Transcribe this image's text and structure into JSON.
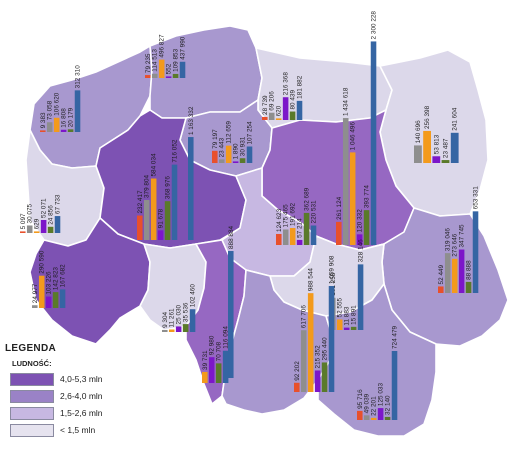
{
  "legend": {
    "title": "LEGENDA",
    "subtitle": "LUDNOŚĆ:",
    "items": [
      {
        "label": "4,0-5,3 mln",
        "color": "#7d52b3"
      },
      {
        "label": "2,6-4,0 mln",
        "color": "#9a82c6"
      },
      {
        "label": "1,5-2,6 mln",
        "color": "#c7b8e2"
      },
      {
        "label": "< 1,5 mln",
        "color": "#e6e3ef"
      }
    ]
  },
  "bar_colors": [
    "#e8502c",
    "#8e8e8e",
    "#f39a1c",
    "#7c16c9",
    "#5a7a2a",
    "#3565a3"
  ],
  "groups": [
    {
      "id": "zachodniopomorskie",
      "values": [
        79235,
        114513,
        496827,
        552,
        109853,
        437990
      ],
      "labels": [
        "79 235",
        "114 513",
        "496 827",
        "552",
        "109 853",
        "437 990"
      ]
    },
    {
      "id": "pomorskie-west",
      "values": [
        9383,
        73058,
        106620,
        16808,
        20179,
        312310
      ],
      "labels": [
        "9 383",
        "73 058",
        "106 620",
        "16 808",
        "20 179",
        "312 310"
      ]
    },
    {
      "id": "warminsko-mazurskie",
      "values": [
        28739,
        69206,
        620,
        216368,
        80439,
        181882
      ],
      "labels": [
        "28 739",
        "69 206",
        "620",
        "216 368",
        "80 439",
        "181 882"
      ]
    },
    {
      "id": "kujawsko-pomorskie",
      "values": [
        79197,
        23443,
        112659,
        1890,
        30931,
        107254
      ],
      "labels": [
        "79 197",
        "23 443",
        "112 659",
        "1 890",
        "30 931",
        "107 254"
      ]
    },
    {
      "id": "wielkopolskie",
      "values": [
        232417,
        379804,
        584034,
        91678,
        368976,
        716052
      ],
      "labels": [
        "232 417",
        "379 804",
        "584 034",
        "91 678",
        "368 976",
        "716 052"
      ]
    },
    {
      "id": "mazowieckie",
      "values": [
        261124,
        1434618,
        1046496,
        120332,
        393774,
        2300228
      ],
      "labels": [
        "261 124",
        "1 434 618",
        "1 046 496",
        "120 332",
        "393 774",
        "2 300 228"
      ]
    },
    {
      "id": "podlaskie",
      "values": [
        140696,
        256398,
        53813,
        23487,
        241604
      ],
      "labels": [
        "140 696",
        "256 398",
        "53 813",
        "23 487",
        "241 604"
      ]
    },
    {
      "id": "lubuskie",
      "values": [
        5097,
        30075,
        629,
        52071,
        24856,
        67733
      ],
      "labels": [
        "5 097",
        "30 075",
        "629",
        "52 071",
        "24 856",
        "67 733"
      ]
    },
    {
      "id": "wielkopolskie-south",
      "values": [
        1163332
      ],
      "labels": [
        "1 163 332"
      ]
    },
    {
      "id": "lodzkie",
      "values": [
        124623,
        175465,
        191692,
        57214,
        362689,
        220531
      ],
      "labels": [
        "124 623",
        "175 465",
        "191 692",
        "57 214",
        "362 689",
        "220 531"
      ]
    },
    {
      "id": "dolnoslaskie",
      "values": [
        24977,
        290590,
        103226,
        142823,
        167682
      ],
      "labels": [
        "24 977",
        "290 590",
        "103 226",
        "142 823",
        "167 682"
      ]
    },
    {
      "id": "lubelskie",
      "values": [
        52449,
        319046,
        273646,
        347745,
        88888,
        653331
      ],
      "labels": [
        "52 449",
        "319 046",
        "273 646",
        "347 745",
        "88 888",
        "653 331"
      ]
    },
    {
      "id": "opolskie",
      "values": [
        9304,
        11261,
        25030,
        35536,
        102460
      ],
      "labels": [
        "9 304",
        "11 261",
        "25 030",
        "35 536",
        "102 460"
      ]
    },
    {
      "id": "slaskie-north",
      "values": [
        888884
      ],
      "labels": [
        "888 884"
      ]
    },
    {
      "id": "swietokrzyskie",
      "values": [
        161258,
        52555,
        11883,
        15891,
        328146
      ],
      "labels": [
        "161 258",
        "52 555",
        "11 883",
        "15 891",
        "328 146"
      ]
    },
    {
      "id": "slaskie",
      "values": [
        39731,
        92980,
        70708,
        116094
      ],
      "labels": [
        "39 731",
        "92 980",
        "70 708",
        "116 094"
      ]
    },
    {
      "id": "malopolskie",
      "values": [
        92202,
        617706,
        988544,
        215352,
        295440,
        1059908
      ],
      "labels": [
        "92 202",
        "617 706",
        "988 544",
        "215 352",
        "295 440",
        "1 059 908"
      ]
    },
    {
      "id": "podkarpackie",
      "values": [
        95716,
        49039,
        22201,
        125033,
        32140,
        724479
      ],
      "labels": [
        "95 716",
        "49 039",
        "22 201",
        "125 033",
        "32 140",
        "724 479"
      ]
    }
  ]
}
